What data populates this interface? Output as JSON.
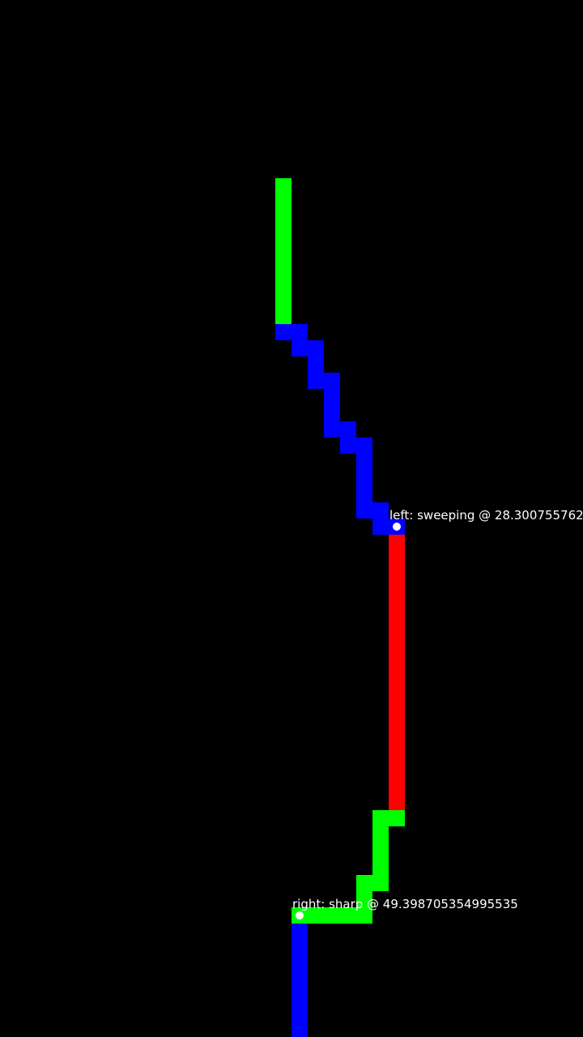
{
  "colors": {
    "background": "#000000",
    "straight": "#00ff00",
    "sweeping": "#0000ff",
    "sharp_left": "#ff0000",
    "marker": "#ffffff",
    "label": "#ffffff"
  },
  "annotations": {
    "left": "left: sweeping @ 28.300755762",
    "right": "right: sharp @ 49.398705354995535"
  }
}
